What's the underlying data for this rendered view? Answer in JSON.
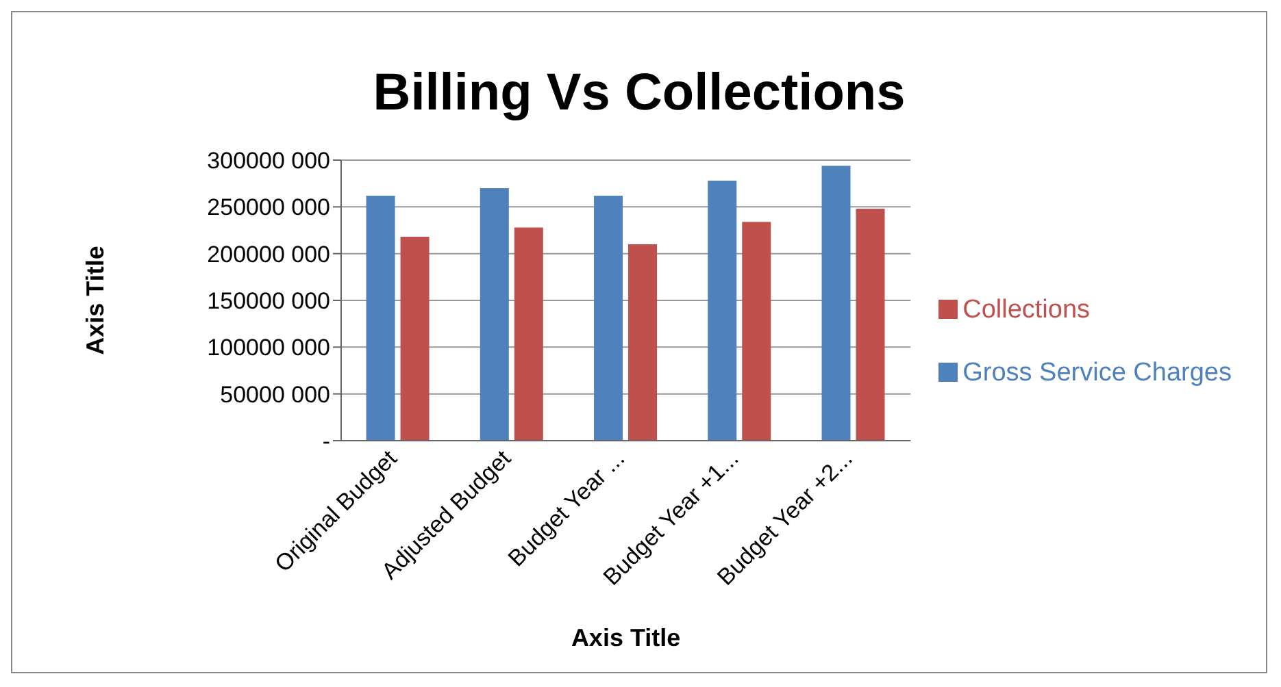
{
  "chart_data": {
    "type": "bar",
    "title": "Billing Vs Collections",
    "xlabel": "Axis Title",
    "ylabel": "Axis Title",
    "categories": [
      "Original Budget",
      "Adjusted Budget",
      "Budget Year ...",
      "Budget Year +1...",
      "Budget Year +2..."
    ],
    "series": [
      {
        "name": "Gross Service Charges",
        "color": "#4f81bd",
        "values": [
          262000000,
          270000000,
          262000000,
          278000000,
          294000000
        ]
      },
      {
        "name": "Collections",
        "color": "#c0504d",
        "values": [
          218000000,
          228000000,
          210000000,
          234000000,
          248000000
        ]
      }
    ],
    "ylim": [
      0,
      300000000
    ],
    "yticks": [
      {
        "value": 0,
        "label": "-"
      },
      {
        "value": 50000000,
        "label": "50000 000"
      },
      {
        "value": 100000000,
        "label": "100000 000"
      },
      {
        "value": 150000000,
        "label": "150000 000"
      },
      {
        "value": 200000000,
        "label": "200000 000"
      },
      {
        "value": 250000000,
        "label": "250000 000"
      },
      {
        "value": 300000000,
        "label": "300000 000"
      }
    ],
    "grid": "y",
    "legend": "right"
  }
}
